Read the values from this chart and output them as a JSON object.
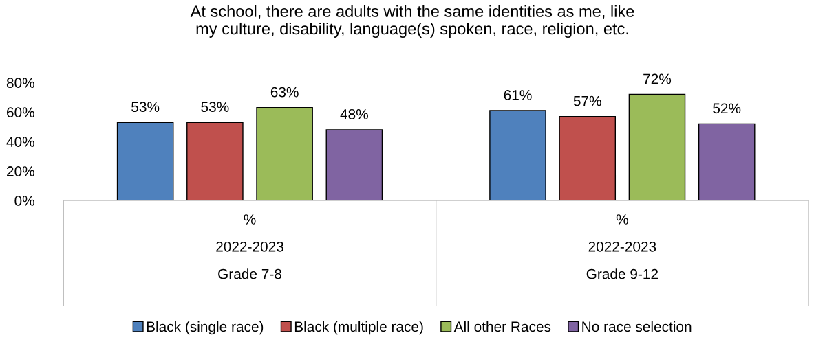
{
  "chart_data": {
    "type": "bar",
    "title": "At school, there are adults with the same identities as me, like\nmy culture, disability, language(s) spoken, race, religion, etc.",
    "categories": [
      "%\n2022-2023\nGrade 7-8",
      "%\n2022-2023\nGrade 9-12"
    ],
    "series": [
      {
        "name": "Black (single race)",
        "color": "#4f81bd",
        "values": [
          53,
          61
        ],
        "value_labels": [
          "53%",
          "61%"
        ]
      },
      {
        "name": "Black (multiple race)",
        "color": "#c0504d",
        "values": [
          53,
          57
        ],
        "value_labels": [
          "53%",
          "57%"
        ]
      },
      {
        "name": "All other Races",
        "color": "#9bbb59",
        "values": [
          63,
          72
        ],
        "value_labels": [
          "63%",
          "72%"
        ]
      },
      {
        "name": "No race selection",
        "color": "#8064a2",
        "values": [
          48,
          52
        ],
        "value_labels": [
          "48%",
          "52%"
        ]
      }
    ],
    "ylim": [
      0,
      80
    ],
    "yticks": [
      {
        "value": 0,
        "label": "0%"
      },
      {
        "value": 20,
        "label": "20%"
      },
      {
        "value": 40,
        "label": "40%"
      },
      {
        "value": 60,
        "label": "60%"
      },
      {
        "value": 80,
        "label": "80%"
      }
    ],
    "grid": false,
    "legend": "bottom"
  }
}
